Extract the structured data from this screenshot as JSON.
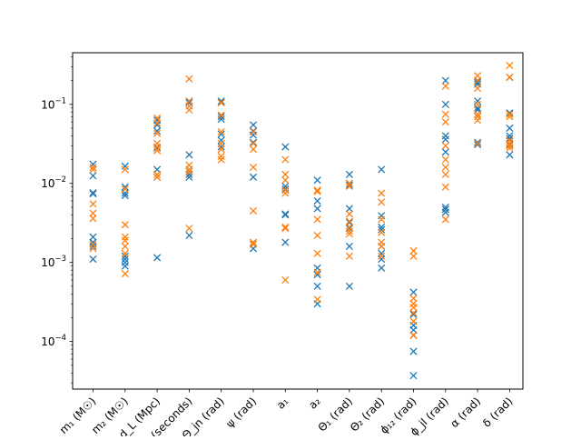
{
  "chart_data": {
    "type": "scatter",
    "marker": "x",
    "yscale": "log",
    "ylim": [
      2.5e-05,
      0.45
    ],
    "y_ticks": [
      {
        "value": 0.0001,
        "base": "10",
        "exp": "−4"
      },
      {
        "value": 0.001,
        "base": "10",
        "exp": "−3"
      },
      {
        "value": 0.01,
        "base": "10",
        "exp": "−2"
      },
      {
        "value": 0.1,
        "base": "10",
        "exp": "−1"
      }
    ],
    "categories": [
      "m₁ (M☉)",
      "m₂ (M☉)",
      "d_L (Mpc)",
      "t_c (seconds)",
      "Θ_jn (rad)",
      "ψ (rad)",
      "a₁",
      "a₂",
      "Θ₁ (rad)",
      "Θ₂ (rad)",
      "ϕ₁₂ (rad)",
      "ϕ_jl (rad)",
      "α (rad)",
      "δ (rad)"
    ],
    "series": [
      {
        "color": "#1f77b4",
        "values": [
          [
            0.0175,
            0.0125,
            0.0076,
            0.0074,
            0.0021,
            0.0018,
            0.0016,
            0.0011
          ],
          [
            0.0165,
            0.009,
            0.0075,
            0.007,
            0.0012,
            0.0011,
            0.001,
            0.0009
          ],
          [
            0.063,
            0.055,
            0.046,
            0.028,
            0.015,
            0.012,
            0.00115
          ],
          [
            0.11,
            0.105,
            0.023,
            0.015,
            0.013,
            0.012,
            0.0022
          ],
          [
            0.11,
            0.105,
            0.07,
            0.065,
            0.042,
            0.035,
            0.029
          ],
          [
            0.055,
            0.046,
            0.041,
            0.033,
            0.012,
            0.0017,
            0.0015
          ],
          [
            0.029,
            0.0092,
            0.0085,
            0.0041,
            0.004,
            0.0018
          ],
          [
            0.011,
            0.006,
            0.0048,
            0.00085,
            0.0007,
            0.0005,
            0.0003
          ],
          [
            0.013,
            0.01,
            0.0095,
            0.0048,
            0.0032,
            0.0027,
            0.0016,
            0.0005
          ],
          [
            0.015,
            0.0039,
            0.0028,
            0.0026,
            0.0016,
            0.0013,
            0.0011,
            0.00085
          ],
          [
            0.00042,
            0.00022,
            0.00016,
            0.00014,
            0.00012,
            7.5e-05,
            3.7e-05
          ],
          [
            0.2,
            0.1,
            0.04,
            0.036,
            0.025,
            0.005,
            0.0047,
            0.0043
          ],
          [
            0.2,
            0.19,
            0.18,
            0.11,
            0.09,
            0.085,
            0.033,
            0.031
          ],
          [
            0.22,
            0.078,
            0.05,
            0.04,
            0.037,
            0.031,
            0.023
          ]
        ]
      },
      {
        "color": "#ff7f0e",
        "values": [
          [
            0.016,
            0.015,
            0.0055,
            0.0042,
            0.0036,
            0.0017,
            0.0015
          ],
          [
            0.015,
            0.0085,
            0.003,
            0.0021,
            0.0019,
            0.0016,
            0.0013,
            0.00072
          ],
          [
            0.067,
            0.058,
            0.043,
            0.032,
            0.029,
            0.026,
            0.013,
            0.012
          ],
          [
            0.21,
            0.11,
            0.095,
            0.085,
            0.017,
            0.015,
            0.014,
            0.0027
          ],
          [
            0.105,
            0.073,
            0.045,
            0.032,
            0.027,
            0.022,
            0.02
          ],
          [
            0.045,
            0.032,
            0.027,
            0.016,
            0.0045,
            0.0018,
            0.0017
          ],
          [
            0.02,
            0.013,
            0.011,
            0.0082,
            0.0075,
            0.0028,
            0.0027,
            0.0006
          ],
          [
            0.0082,
            0.0079,
            0.0035,
            0.0022,
            0.0013,
            0.00075,
            0.00034
          ],
          [
            0.01,
            0.0092,
            0.0041,
            0.0033,
            0.0028,
            0.0025,
            0.0023,
            0.0012
          ],
          [
            0.0075,
            0.0058,
            0.0035,
            0.0024,
            0.0018,
            0.0016,
            0.0012
          ],
          [
            0.0014,
            0.0012,
            0.00035,
            0.0003,
            0.00027,
            0.00023,
            0.00018,
            0.00012
          ],
          [
            0.17,
            0.075,
            0.06,
            0.03,
            0.02,
            0.016,
            0.013,
            0.009,
            0.0035
          ],
          [
            0.23,
            0.2,
            0.16,
            0.1,
            0.075,
            0.07,
            0.063,
            0.032
          ],
          [
            0.31,
            0.22,
            0.075,
            0.07,
            0.035,
            0.032,
            0.03,
            0.028
          ]
        ]
      }
    ]
  }
}
